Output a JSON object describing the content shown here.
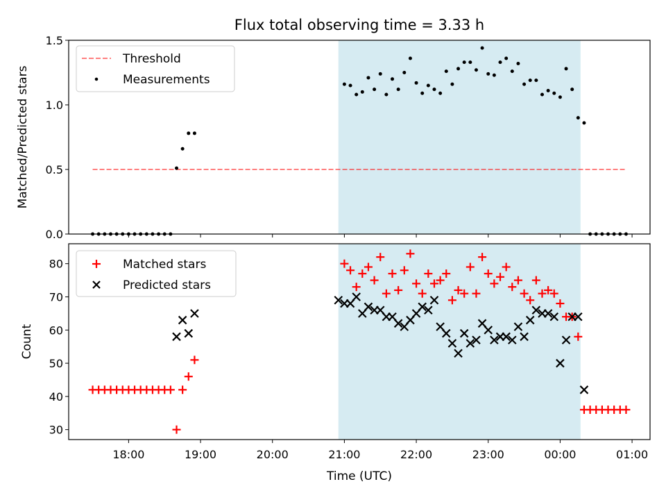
{
  "chart_data": [
    {
      "type": "scatter",
      "title": "Flux total observing time = 3.33 h",
      "xlabel": "",
      "ylabel": "Matched/Predicted stars",
      "ylim": [
        0,
        1.5
      ],
      "yticks": [
        0.0,
        0.5,
        1.0,
        1.5
      ],
      "ytick_labels": [
        "0.0",
        "0.5",
        "1.0",
        "1.5"
      ],
      "shaded_span": [
        "20:55",
        "00:17"
      ],
      "threshold": 0.5,
      "legend": {
        "position": "top-left",
        "entries": [
          "Threshold",
          "Measurements"
        ]
      },
      "series": [
        {
          "name": "Measurements",
          "x": [
            "17:30",
            "17:35",
            "17:40",
            "17:45",
            "17:50",
            "17:55",
            "18:00",
            "18:05",
            "18:10",
            "18:15",
            "18:20",
            "18:25",
            "18:30",
            "18:35",
            "18:40",
            "18:45",
            "18:50",
            "18:55",
            "21:00",
            "21:05",
            "21:10",
            "21:15",
            "21:20",
            "21:25",
            "21:30",
            "21:35",
            "21:40",
            "21:45",
            "21:50",
            "21:55",
            "22:00",
            "22:05",
            "22:10",
            "22:15",
            "22:20",
            "22:25",
            "22:30",
            "22:35",
            "22:40",
            "22:45",
            "22:50",
            "22:55",
            "23:00",
            "23:05",
            "23:10",
            "23:15",
            "23:20",
            "23:25",
            "23:30",
            "23:35",
            "23:40",
            "23:45",
            "23:50",
            "23:55",
            "00:00",
            "00:05",
            "00:10",
            "00:15",
            "00:20",
            "00:25",
            "00:30",
            "00:35",
            "00:40",
            "00:45",
            "00:50",
            "00:55"
          ],
          "values": [
            0,
            0,
            0,
            0,
            0,
            0,
            0,
            0,
            0,
            0,
            0,
            0,
            0,
            0,
            0.51,
            0.66,
            0.78,
            0.78,
            1.16,
            1.15,
            1.08,
            1.1,
            1.21,
            1.12,
            1.24,
            1.08,
            1.2,
            1.12,
            1.25,
            1.36,
            1.17,
            1.09,
            1.15,
            1.12,
            1.09,
            1.26,
            1.16,
            1.28,
            1.33,
            1.33,
            1.27,
            1.44,
            1.24,
            1.23,
            1.33,
            1.36,
            1.26,
            1.32,
            1.16,
            1.19,
            1.19,
            1.08,
            1.11,
            1.09,
            1.06,
            1.28,
            1.12,
            0.9,
            0.86,
            0,
            0,
            0,
            0,
            0,
            0,
            0
          ]
        }
      ]
    },
    {
      "type": "scatter",
      "xlabel": "Time (UTC)",
      "ylabel": "Count",
      "ylim": [
        27,
        86
      ],
      "yticks": [
        30,
        40,
        50,
        60,
        70,
        80
      ],
      "xticks": [
        "18:00",
        "19:00",
        "20:00",
        "21:00",
        "22:00",
        "23:00",
        "00:00",
        "01:00"
      ],
      "legend": {
        "position": "top-left",
        "entries": [
          "Matched stars",
          "Predicted stars"
        ]
      },
      "series": [
        {
          "name": "Matched stars",
          "x": [
            "17:30",
            "17:35",
            "17:40",
            "17:45",
            "17:50",
            "17:55",
            "18:00",
            "18:05",
            "18:10",
            "18:15",
            "18:20",
            "18:25",
            "18:30",
            "18:35",
            "18:40",
            "18:45",
            "18:50",
            "18:55",
            "21:00",
            "21:05",
            "21:10",
            "21:15",
            "21:20",
            "21:25",
            "21:30",
            "21:35",
            "21:40",
            "21:45",
            "21:50",
            "21:55",
            "22:00",
            "22:05",
            "22:10",
            "22:15",
            "22:20",
            "22:25",
            "22:30",
            "22:35",
            "22:40",
            "22:45",
            "22:50",
            "22:55",
            "23:00",
            "23:05",
            "23:10",
            "23:15",
            "23:20",
            "23:25",
            "23:30",
            "23:35",
            "23:40",
            "23:45",
            "23:50",
            "23:55",
            "00:00",
            "00:05",
            "00:10",
            "00:15",
            "00:20",
            "00:25",
            "00:30",
            "00:35",
            "00:40",
            "00:45",
            "00:50",
            "00:55"
          ],
          "values": [
            42,
            42,
            42,
            42,
            42,
            42,
            42,
            42,
            42,
            42,
            42,
            42,
            42,
            42,
            30,
            42,
            46,
            51,
            80,
            78,
            73,
            77,
            79,
            75,
            82,
            71,
            77,
            72,
            78,
            83,
            74,
            71,
            77,
            74,
            75,
            77,
            69,
            72,
            71,
            79,
            71,
            82,
            77,
            74,
            76,
            79,
            73,
            75,
            71,
            69,
            75,
            71,
            72,
            71,
            68,
            64,
            64,
            58,
            36,
            36,
            36,
            36,
            36,
            36,
            36,
            36
          ]
        },
        {
          "name": "Predicted stars",
          "x": [
            "18:40",
            "18:45",
            "18:50",
            "18:55",
            "20:55",
            "21:00",
            "21:05",
            "21:10",
            "21:15",
            "21:20",
            "21:25",
            "21:30",
            "21:35",
            "21:40",
            "21:45",
            "21:50",
            "21:55",
            "22:00",
            "22:05",
            "22:10",
            "22:15",
            "22:20",
            "22:25",
            "22:30",
            "22:35",
            "22:40",
            "22:45",
            "22:50",
            "22:55",
            "23:00",
            "23:05",
            "23:10",
            "23:15",
            "23:20",
            "23:25",
            "23:30",
            "23:35",
            "23:40",
            "23:45",
            "23:50",
            "23:55",
            "00:00",
            "00:05",
            "00:10",
            "00:15",
            "00:20"
          ],
          "values": [
            58,
            63,
            59,
            65,
            69,
            68,
            68,
            70,
            65,
            67,
            66,
            66,
            64,
            64,
            62,
            61,
            63,
            65,
            67,
            66,
            69,
            61,
            59,
            56,
            53,
            59,
            56,
            57,
            62,
            60,
            57,
            58,
            58,
            57,
            61,
            58,
            63,
            66,
            65,
            65,
            64,
            50,
            57,
            64,
            64,
            42
          ]
        }
      ]
    }
  ]
}
